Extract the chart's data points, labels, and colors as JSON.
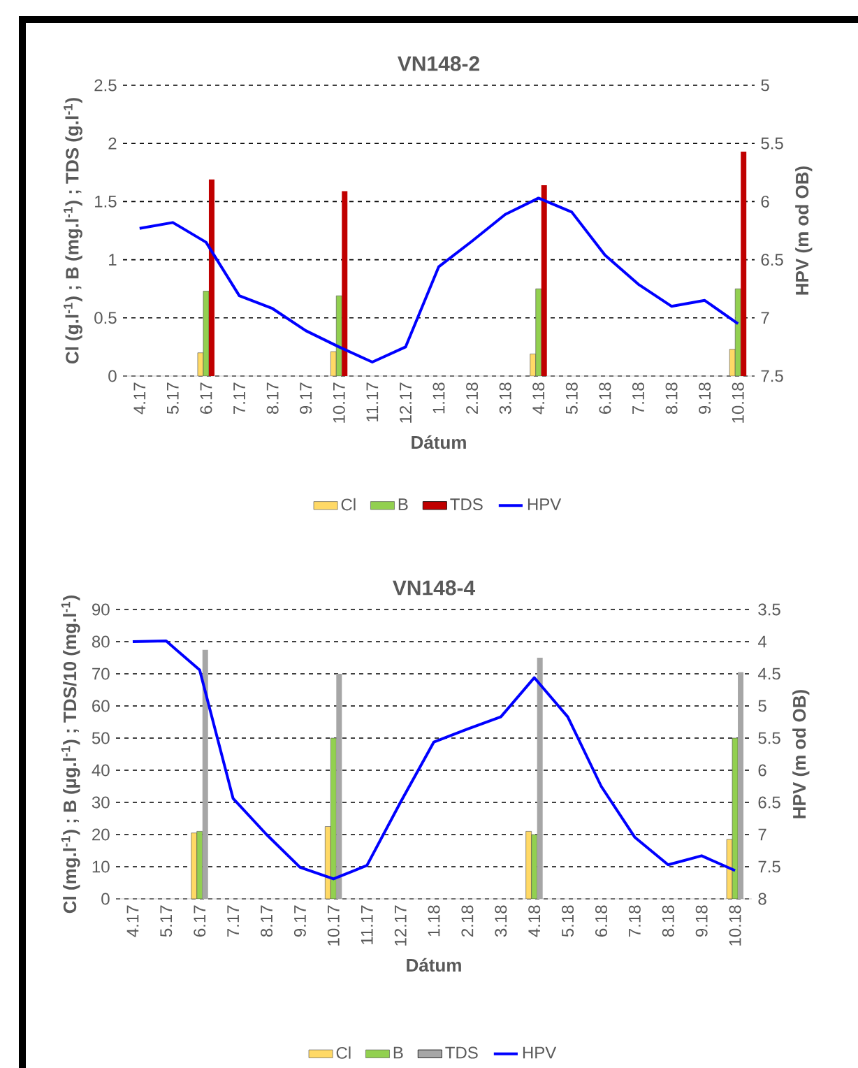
{
  "chart_data": [
    {
      "type": "bar",
      "title": "VN148-2",
      "xlabel": "Dátum",
      "ylabel": "Cl (g.l$^{-1}$) ; B (mg.l$^{-1}$) ; TDS (g.l$^{-1}$)",
      "y2label": "HPV (m od OB)",
      "categories": [
        "4.17",
        "5.17",
        "6.17",
        "7.17",
        "8.17",
        "9.17",
        "10.17",
        "11.17",
        "12.17",
        "1.18",
        "2.18",
        "3.18",
        "4.18",
        "5.18",
        "6.18",
        "7.18",
        "8.18",
        "9.18",
        "10.18"
      ],
      "series": [
        {
          "name": "Cl",
          "color": "#ffd966",
          "values": [
            null,
            null,
            0.2,
            null,
            null,
            null,
            0.21,
            null,
            null,
            null,
            null,
            null,
            0.19,
            null,
            null,
            null,
            null,
            null,
            0.23
          ]
        },
        {
          "name": "B",
          "color": "#92d050",
          "values": [
            null,
            null,
            0.73,
            null,
            null,
            null,
            0.69,
            null,
            null,
            null,
            null,
            null,
            0.75,
            null,
            null,
            null,
            null,
            null,
            0.75
          ]
        },
        {
          "name": "TDS",
          "color": "#c00000",
          "values": [
            null,
            null,
            1.69,
            null,
            null,
            null,
            1.59,
            null,
            null,
            null,
            null,
            null,
            1.64,
            null,
            null,
            null,
            null,
            null,
            1.93
          ]
        },
        {
          "name": "HPV",
          "color": "#0000ff",
          "type": "line",
          "axis": "y2",
          "values": [
            6.23,
            6.18,
            6.35,
            6.81,
            6.92,
            7.11,
            7.25,
            7.38,
            7.25,
            6.56,
            6.34,
            6.11,
            5.97,
            6.09,
            6.46,
            6.71,
            6.9,
            6.85,
            7.05
          ]
        }
      ],
      "ylim": [
        0,
        2.5
      ],
      "yticks": [
        0,
        0.5,
        1,
        1.5,
        2,
        2.5
      ],
      "y2lim": [
        7.5,
        5
      ],
      "y2ticks": [
        5,
        5.5,
        6,
        6.5,
        7,
        7.5
      ],
      "grid": "y",
      "legend": "bottom"
    },
    {
      "type": "bar",
      "title": "VN148-4",
      "xlabel": "Dátum",
      "ylabel": "Cl (mg.l$^{-1}$) ; B (µg.l$^{-1}$) ; TDS/10 (mg.l$^{-1}$)",
      "y2label": "HPV (m od OB)",
      "categories": [
        "4.17",
        "5.17",
        "6.17",
        "7.17",
        "8.17",
        "9.17",
        "10.17",
        "11.17",
        "12.17",
        "1.18",
        "2.18",
        "3.18",
        "4.18",
        "5.18",
        "6.18",
        "7.18",
        "8.18",
        "9.18",
        "10.18"
      ],
      "series": [
        {
          "name": "Cl",
          "color": "#ffd966",
          "values": [
            null,
            null,
            20.5,
            null,
            null,
            null,
            22.5,
            null,
            null,
            null,
            null,
            null,
            21,
            null,
            null,
            null,
            null,
            null,
            18.5
          ]
        },
        {
          "name": "B",
          "color": "#92d050",
          "values": [
            null,
            null,
            21,
            null,
            null,
            null,
            50,
            null,
            null,
            null,
            null,
            null,
            20,
            null,
            null,
            null,
            null,
            null,
            50
          ]
        },
        {
          "name": "TDS",
          "color": "#a6a6a6",
          "values": [
            null,
            null,
            77.5,
            null,
            null,
            null,
            70,
            null,
            null,
            null,
            null,
            null,
            75,
            null,
            null,
            null,
            null,
            null,
            70.5
          ]
        },
        {
          "name": "HPV",
          "color": "#0000ff",
          "type": "line",
          "axis": "y2",
          "values": [
            4.0,
            3.99,
            4.44,
            6.44,
            7.0,
            7.51,
            7.69,
            7.48,
            6.5,
            5.56,
            5.36,
            5.17,
            4.56,
            5.17,
            6.25,
            7.04,
            7.47,
            7.33,
            7.56
          ]
        }
      ],
      "ylim": [
        0,
        90
      ],
      "yticks": [
        0,
        10,
        20,
        30,
        40,
        50,
        60,
        70,
        80,
        90
      ],
      "y2lim": [
        8,
        3.5
      ],
      "y2ticks": [
        3.5,
        4,
        4.5,
        5,
        5.5,
        6,
        6.5,
        7,
        7.5,
        8
      ],
      "grid": "y",
      "legend": "bottom"
    }
  ]
}
